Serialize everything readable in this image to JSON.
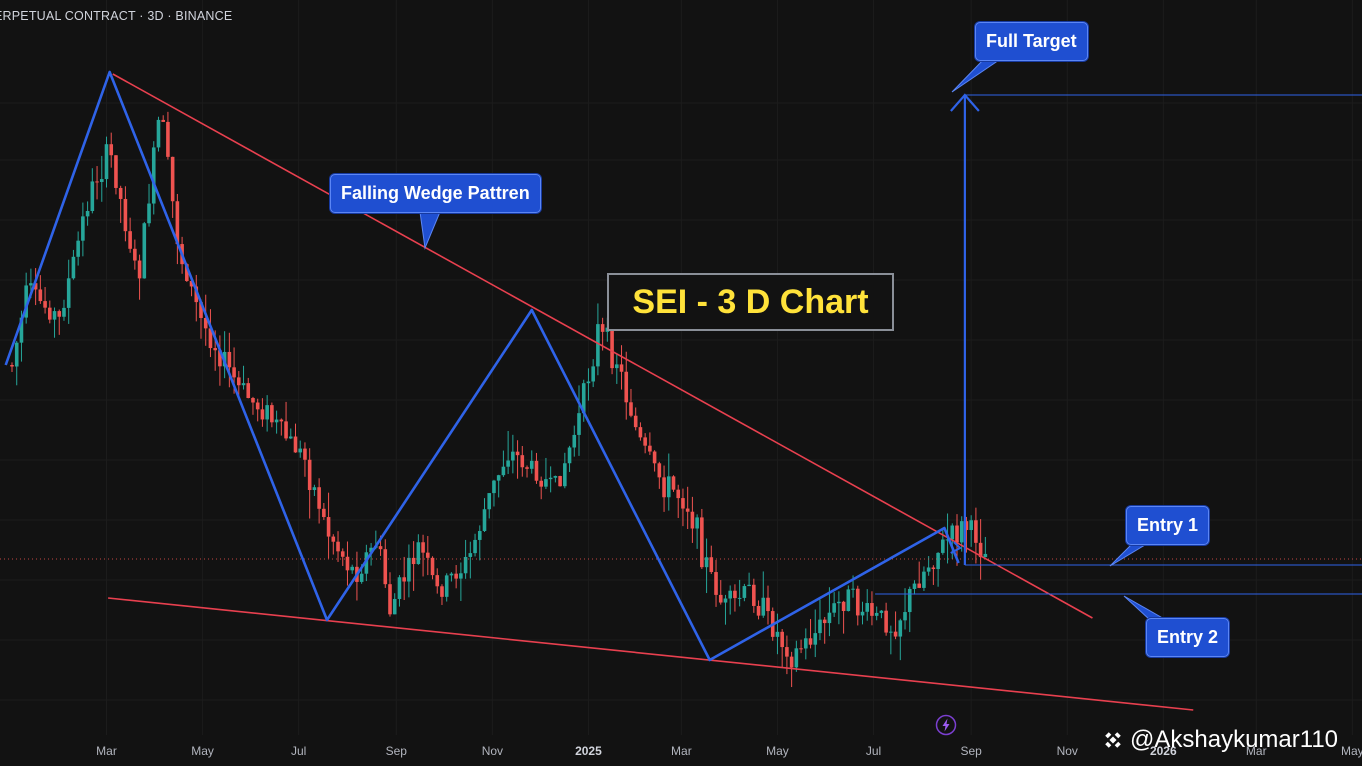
{
  "header": {
    "symbol_text": "ERPETUAL CONTRACT · 3D · BINANCE"
  },
  "annotations": {
    "title": "SEI - 3 D Chart",
    "pattern_label": "Falling Wedge Pattren",
    "full_target": "Full Target",
    "entry1": "Entry 1",
    "entry2": "Entry 2"
  },
  "watermark": {
    "text": "@Akshaykumar110",
    "logo_icon": "binance-logo-icon"
  },
  "colors": {
    "background": "#121212",
    "candle_up": "#26a69a",
    "candle_down": "#ef5350",
    "pattern_line": "#2f63e8",
    "trend_line": "#e8404f",
    "callout_fill": "#1f4fd1"
  },
  "chart_data": {
    "type": "candlestick",
    "exchange": "BINANCE",
    "interval": "3D",
    "x_ticks": [
      {
        "label": "Mar",
        "bold": false
      },
      {
        "label": "May",
        "bold": false
      },
      {
        "label": "Jul",
        "bold": false
      },
      {
        "label": "Sep",
        "bold": false
      },
      {
        "label": "Nov",
        "bold": false
      },
      {
        "label": "2025",
        "bold": true
      },
      {
        "label": "Mar",
        "bold": false
      },
      {
        "label": "May",
        "bold": false
      },
      {
        "label": "Jul",
        "bold": false
      },
      {
        "label": "Sep",
        "bold": false
      },
      {
        "label": "Nov",
        "bold": false
      },
      {
        "label": "2026",
        "bold": true
      },
      {
        "label": "Mar",
        "bold": false
      },
      {
        "label": "May",
        "bold": false
      }
    ],
    "x_tick_days": [
      60,
      121,
      182,
      244,
      305,
      366,
      425,
      486,
      547,
      609,
      670,
      731,
      790,
      851
    ],
    "y_range": [
      0,
      766
    ],
    "price_waypoints": [
      [
        0,
        365
      ],
      [
        10,
        290
      ],
      [
        30,
        320
      ],
      [
        50,
        190
      ],
      [
        62,
        150
      ],
      [
        80,
        280
      ],
      [
        94,
        110
      ],
      [
        106,
        250
      ],
      [
        120,
        320
      ],
      [
        145,
        390
      ],
      [
        165,
        420
      ],
      [
        186,
        460
      ],
      [
        200,
        530
      ],
      [
        218,
        575
      ],
      [
        232,
        540
      ],
      [
        240,
        610
      ],
      [
        258,
        545
      ],
      [
        270,
        590
      ],
      [
        290,
        560
      ],
      [
        300,
        510
      ],
      [
        315,
        450
      ],
      [
        330,
        470
      ],
      [
        345,
        490
      ],
      [
        360,
        420
      ],
      [
        372,
        330
      ],
      [
        384,
        360
      ],
      [
        398,
        440
      ],
      [
        412,
        480
      ],
      [
        428,
        500
      ],
      [
        440,
        560
      ],
      [
        452,
        610
      ],
      [
        468,
        590
      ],
      [
        480,
        620
      ],
      [
        495,
        655
      ],
      [
        512,
        630
      ],
      [
        528,
        598
      ],
      [
        546,
        615
      ],
      [
        560,
        628
      ],
      [
        575,
        580
      ],
      [
        590,
        545
      ],
      [
        605,
        525
      ],
      [
        612,
        535
      ],
      [
        620,
        560
      ]
    ],
    "pattern_zigzag": [
      [
        -4,
        365
      ],
      [
        62,
        72
      ],
      [
        200,
        620
      ],
      [
        330,
        310
      ],
      [
        443,
        660
      ],
      [
        592,
        528
      ],
      [
        601,
        563
      ]
    ],
    "trendline_upper": [
      [
        64,
        74
      ],
      [
        686,
        618
      ]
    ],
    "trendline_lower": [
      [
        61,
        598
      ],
      [
        750,
        710
      ]
    ],
    "target_arrow": {
      "day": 605,
      "from": 565,
      "to": 95
    },
    "target_level": 95,
    "entry1_level": 565,
    "entry2_level": 594,
    "current_price_level": 559
  }
}
